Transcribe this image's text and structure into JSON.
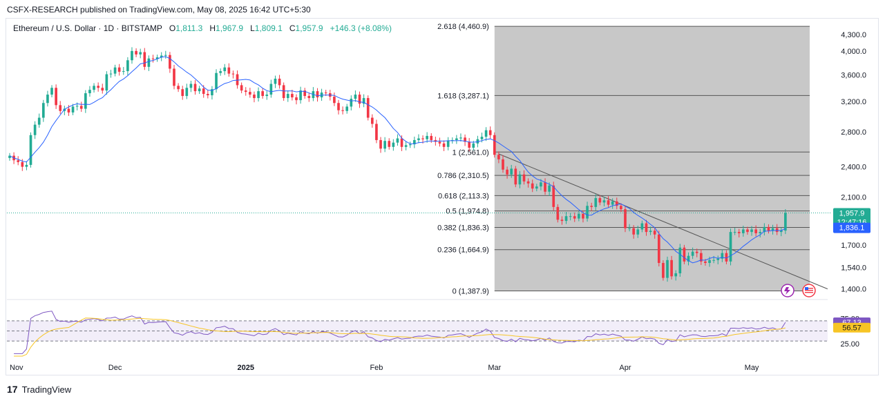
{
  "publisher_line": "CSFX-RESEARCH published on TradingView.com, May 08, 2025 16:42 UTC+5:30",
  "legend": {
    "symbol": "Ethereum / U.S. Dollar · 1D · BITSTAMP",
    "o_label": "O",
    "o": "1,811.3",
    "h_label": "H",
    "h": "1,967.9",
    "l_label": "L",
    "l": "1,809.1",
    "c_label": "C",
    "c": "1,957.9",
    "change": "+146.3 (+8.08%)"
  },
  "footer": {
    "brand": "TradingView",
    "logo": "17"
  },
  "colors": {
    "up": "#22ab94",
    "down": "#f23645",
    "ma": "#2962ff",
    "fib_zone": "#c8c8c8",
    "rsi": "#7e57c2",
    "rsi_ma": "#f7c525",
    "price_badge": "#22ab94",
    "ma_badge": "#2962ff"
  },
  "chart_data": {
    "type": "candlestick",
    "title": "Ethereum / U.S. Dollar · 1D · BITSTAMP",
    "y_scale": "log",
    "ylim": [
      1340,
      4600
    ],
    "y_ticks": [
      {
        "v": 4300,
        "label": "4,300.0"
      },
      {
        "v": 4000,
        "label": "4,000.0"
      },
      {
        "v": 3600,
        "label": "3,600.0"
      },
      {
        "v": 3200,
        "label": "3,200.0"
      },
      {
        "v": 2800,
        "label": "2,800.0"
      },
      {
        "v": 2400,
        "label": "2,400.0"
      },
      {
        "v": 2100,
        "label": "2,100.0"
      },
      {
        "v": 1700,
        "label": "1,700.0"
      },
      {
        "v": 1540,
        "label": "1,540.0"
      },
      {
        "v": 1400,
        "label": "1,400.0"
      }
    ],
    "x_labels": [
      {
        "d": 0,
        "label": "Nov"
      },
      {
        "d": 25,
        "label": "Dec"
      },
      {
        "d": 56,
        "label": "2025",
        "bold": true
      },
      {
        "d": 87,
        "label": "Feb"
      },
      {
        "d": 115,
        "label": "Mar"
      },
      {
        "d": 146,
        "label": "Apr"
      },
      {
        "d": 176,
        "label": "May"
      }
    ],
    "x_start": "2024-10-31",
    "last_price": {
      "value": 1957.9,
      "label": "1,957.9",
      "countdown": "12:47:16"
    },
    "ma_last": {
      "value": 1836.1,
      "label": "1,836.1"
    },
    "fib": {
      "start_day": 115,
      "levels": [
        {
          "ratio": "2.618",
          "price": 4460.9,
          "label": "2.618 (4,460.9)"
        },
        {
          "ratio": "1.618",
          "price": 3287.1,
          "label": "1.618 (3,287.1)"
        },
        {
          "ratio": "1",
          "price": 2561.0,
          "label": "1 (2,561.0)"
        },
        {
          "ratio": "0.786",
          "price": 2310.5,
          "label": "0.786 (2,310.5)"
        },
        {
          "ratio": "0.618",
          "price": 2113.3,
          "label": "0.618 (2,113.3)"
        },
        {
          "ratio": "0.5",
          "price": 1974.8,
          "label": "0.5 (1,974.8)"
        },
        {
          "ratio": "0.382",
          "price": 1836.3,
          "label": "0.382 (1,836.3)"
        },
        {
          "ratio": "0.236",
          "price": 1664.9,
          "label": "0.236 (1,664.9)"
        },
        {
          "ratio": "0",
          "price": 1387.9,
          "label": "0 (1,387.9)"
        }
      ]
    },
    "trendline": [
      {
        "d": 116,
        "p": 2540
      },
      {
        "d": 194,
        "p": 1400
      }
    ],
    "closes": [
      2520,
      2470,
      2450,
      2400,
      2420,
      2760,
      2890,
      2980,
      3180,
      3300,
      3400,
      3150,
      3070,
      3100,
      3050,
      3130,
      3140,
      3100,
      3320,
      3370,
      3430,
      3400,
      3360,
      3610,
      3620,
      3720,
      3650,
      3660,
      3840,
      4000,
      3940,
      3980,
      3730,
      3870,
      3860,
      3890,
      3920,
      3930,
      3700,
      3430,
      3380,
      3280,
      3400,
      3460,
      3350,
      3390,
      3310,
      3290,
      3380,
      3630,
      3660,
      3720,
      3620,
      3610,
      3440,
      3360,
      3340,
      3300,
      3250,
      3350,
      3280,
      3300,
      3460,
      3540,
      3440,
      3250,
      3310,
      3260,
      3220,
      3360,
      3280,
      3250,
      3350,
      3260,
      3330,
      3320,
      3270,
      3180,
      3080,
      3070,
      3130,
      3240,
      3300,
      3170,
      3250,
      2980,
      2900,
      2700,
      2600,
      2690,
      2620,
      2670,
      2720,
      2620,
      2640,
      2650,
      2700,
      2720,
      2710,
      2750,
      2700,
      2680,
      2660,
      2620,
      2690,
      2700,
      2720,
      2730,
      2680,
      2610,
      2660,
      2710,
      2740,
      2820,
      2760,
      2530,
      2480,
      2370,
      2320,
      2380,
      2220,
      2320,
      2250,
      2230,
      2180,
      2200,
      2240,
      2150,
      2210,
      2010,
      1900,
      1890,
      1930,
      1930,
      1910,
      1950,
      1910,
      2020,
      2010,
      2090,
      2050,
      2070,
      2030,
      2060,
      2020,
      1990,
      1830,
      1830,
      1780,
      1820,
      1870,
      1800,
      1810,
      1780,
      1570,
      1470,
      1590,
      1480,
      1500,
      1680,
      1580,
      1620,
      1650,
      1640,
      1580,
      1570,
      1590,
      1590,
      1600,
      1640,
      1580,
      1800,
      1800,
      1790,
      1820,
      1800,
      1820,
      1790,
      1800,
      1840,
      1810,
      1830,
      1800,
      1811,
      1957.9
    ],
    "rsi": {
      "ylim": [
        0,
        100
      ],
      "upper": 70,
      "mid": 50,
      "lower": 30,
      "tick_75": "75.00",
      "tick_25": "25.00",
      "last": {
        "value": 67.13,
        "label": "67.13"
      },
      "ma_last": {
        "value": 56.57,
        "label": "56.57"
      }
    }
  }
}
